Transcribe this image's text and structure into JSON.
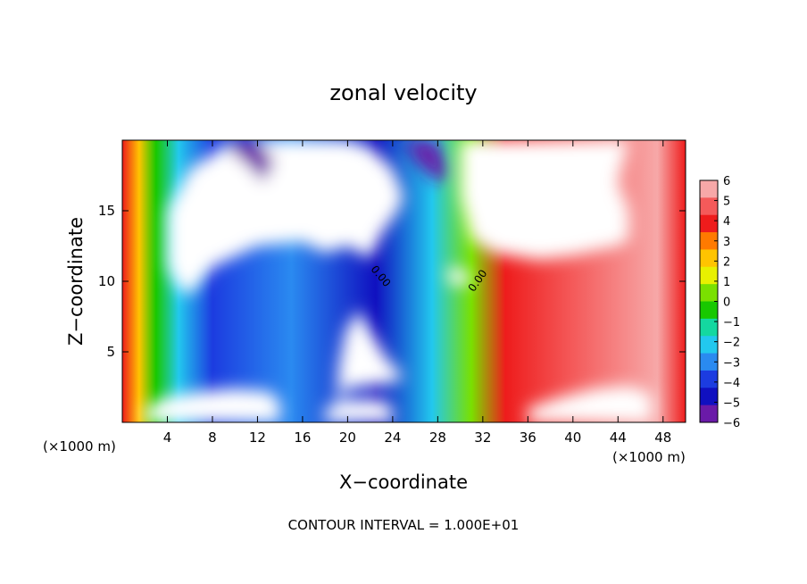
{
  "chart_data": {
    "type": "heatmap",
    "title": "zonal velocity",
    "xlabel": "X−coordinate",
    "ylabel": "Z−coordinate",
    "x_unit": "(×1000 m)",
    "z_unit": "(×1000 m)",
    "footer": "CONTOUR INTERVAL = 1.000E+01",
    "contour_label": "0.00",
    "xlim": [
      0,
      50
    ],
    "ylim": [
      0,
      20
    ],
    "x_ticks": [
      4,
      8,
      12,
      16,
      20,
      24,
      28,
      32,
      36,
      40,
      44,
      48
    ],
    "y_ticks": [
      5,
      10,
      15
    ],
    "colorbar": {
      "levels": [
        6,
        5,
        4,
        3,
        2,
        1,
        0,
        -1,
        -2,
        -3,
        -4,
        -5,
        -6
      ],
      "labels": [
        "6",
        "5",
        "4",
        "3",
        "2",
        "1",
        "0",
        "−1",
        "−2",
        "−3",
        "−4",
        "−5",
        "−6"
      ],
      "colors": [
        "#f7a8a8",
        "#f45a5a",
        "#ee1c1c",
        "#ff7a00",
        "#ffc400",
        "#e8f000",
        "#7ae000",
        "#18c800",
        "#14d8a0",
        "#22c8ee",
        "#2a8af0",
        "#1c3ce0",
        "#1010c0",
        "#6a1aa8"
      ]
    },
    "features": [
      {
        "kind": "above_range",
        "label": "u > 6",
        "polygon": [
          [
            6,
            9
          ],
          [
            8,
            11
          ],
          [
            12,
            12.5
          ],
          [
            16,
            12.8
          ],
          [
            18,
            12
          ],
          [
            20,
            12.5
          ],
          [
            22,
            11.6
          ],
          [
            23,
            13.3
          ],
          [
            24.5,
            15
          ],
          [
            25,
            16
          ],
          [
            24,
            18
          ],
          [
            22,
            19.5
          ],
          [
            20,
            20
          ],
          [
            10,
            20
          ],
          [
            6,
            18
          ],
          [
            4,
            15
          ],
          [
            4,
            11
          ],
          [
            5,
            9.5
          ]
        ]
      },
      {
        "kind": "above_range",
        "label": "u > 6",
        "polygon": [
          [
            30,
            20
          ],
          [
            30,
            16
          ],
          [
            31,
            13
          ],
          [
            33,
            12
          ],
          [
            37,
            11.5
          ],
          [
            40,
            11.8
          ],
          [
            44,
            12.5
          ],
          [
            45,
            13
          ],
          [
            45,
            15
          ],
          [
            44,
            17
          ],
          [
            45,
            20
          ]
        ]
      },
      {
        "kind": "above_range",
        "label": "u > 6",
        "polygon": [
          [
            29,
            11
          ],
          [
            30.2,
            10.8
          ],
          [
            31,
            10.3
          ],
          [
            30.4,
            9.7
          ],
          [
            29.2,
            9.8
          ],
          [
            28.8,
            10.4
          ]
        ]
      },
      {
        "kind": "above_range",
        "label": "u > 6",
        "polygon": [
          [
            19,
            1
          ],
          [
            19.2,
            4
          ],
          [
            19.8,
            6.5
          ],
          [
            21,
            8
          ],
          [
            22,
            6.5
          ],
          [
            23.5,
            4.5
          ],
          [
            25,
            3.2
          ],
          [
            24,
            2.8
          ],
          [
            22,
            2.6
          ],
          [
            19.8,
            2.4
          ]
        ]
      },
      {
        "kind": "above_range",
        "label": "u > 6",
        "polygon": [
          [
            2,
            0
          ],
          [
            2,
            1
          ],
          [
            4,
            1.8
          ],
          [
            7,
            2.2
          ],
          [
            10,
            2.4
          ],
          [
            13,
            2.2
          ],
          [
            14,
            1.5
          ],
          [
            14,
            0
          ]
        ]
      },
      {
        "kind": "above_range",
        "label": "u > 6",
        "polygon": [
          [
            36,
            0
          ],
          [
            36,
            1
          ],
          [
            39,
            1.8
          ],
          [
            42,
            2.4
          ],
          [
            45,
            2.6
          ],
          [
            47,
            2
          ],
          [
            47,
            0
          ]
        ]
      },
      {
        "kind": "above_range",
        "label": "u > 6",
        "polygon": [
          [
            18,
            0
          ],
          [
            18,
            1
          ],
          [
            20,
            1.6
          ],
          [
            23,
            1.6
          ],
          [
            24,
            1
          ],
          [
            24,
            0
          ]
        ]
      },
      {
        "kind": "below_range",
        "label": "u < −6",
        "polygon": [
          [
            9,
            20
          ],
          [
            10,
            19
          ],
          [
            11.5,
            18
          ],
          [
            12.5,
            17
          ],
          [
            13.5,
            18.5
          ],
          [
            12,
            20
          ]
        ]
      },
      {
        "kind": "below_range",
        "label": "u < −6",
        "polygon": [
          [
            25,
            20
          ],
          [
            26,
            18.5
          ],
          [
            28,
            17
          ],
          [
            29,
            17.5
          ],
          [
            28,
            20
          ]
        ]
      }
    ]
  }
}
